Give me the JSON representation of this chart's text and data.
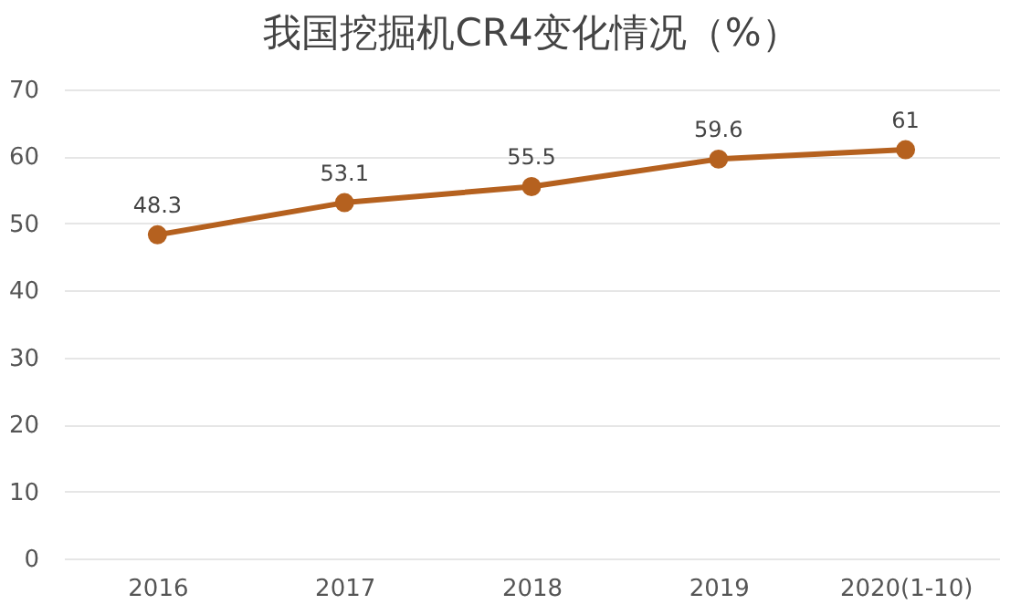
{
  "chart_data": {
    "type": "line",
    "title": "我国挖掘机CR4变化情况（%）",
    "categories": [
      "2016",
      "2017",
      "2018",
      "2019",
      "2020(1-10)"
    ],
    "series": [
      {
        "color": "#b5611f",
        "values": [
          48.3,
          53.1,
          55.5,
          59.6,
          61
        ]
      }
    ],
    "ylim": [
      0,
      70
    ],
    "yticks": [
      0,
      10,
      20,
      30,
      40,
      50,
      60,
      70
    ],
    "grid": "y",
    "marker": "circle",
    "line_style": "solid",
    "data_labels": true,
    "legend": false
  }
}
